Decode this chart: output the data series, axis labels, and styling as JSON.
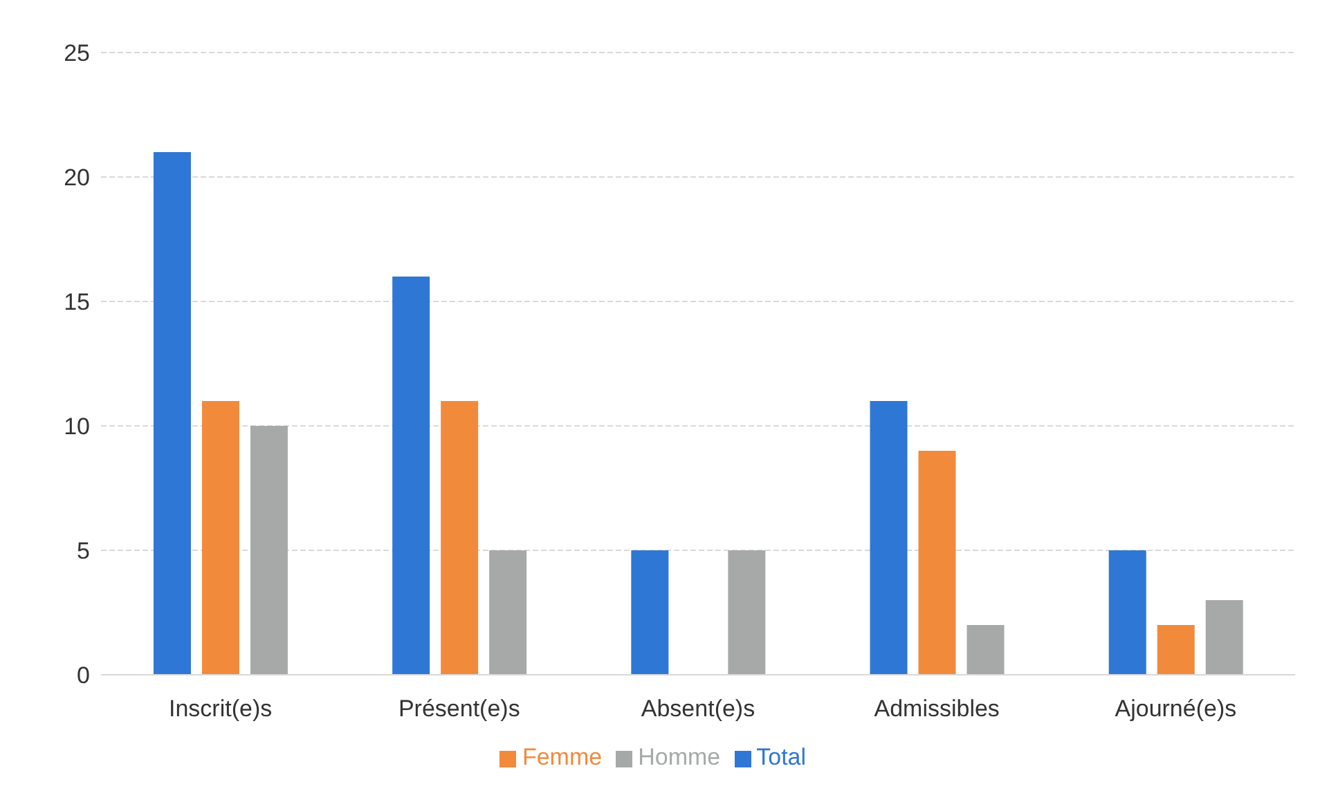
{
  "chart_data": {
    "type": "bar",
    "categories": [
      "Inscrit(e)s",
      "Présent(e)s",
      "Absent(e)s",
      "Admissibles",
      "Ajourné(e)s"
    ],
    "series": [
      {
        "name": "Total",
        "color": "#2f77d4",
        "values": [
          21,
          16,
          5,
          11,
          5
        ]
      },
      {
        "name": "Femme",
        "color": "#f28a3c",
        "values": [
          11,
          11,
          0,
          9,
          2
        ]
      },
      {
        "name": "Homme",
        "color": "#a7a9a9",
        "values": [
          10,
          5,
          5,
          2,
          3
        ]
      }
    ],
    "ylim": [
      0,
      25
    ],
    "yticks": [
      0,
      5,
      10,
      15,
      20,
      25
    ],
    "grid": "y",
    "legend": "bottom"
  }
}
